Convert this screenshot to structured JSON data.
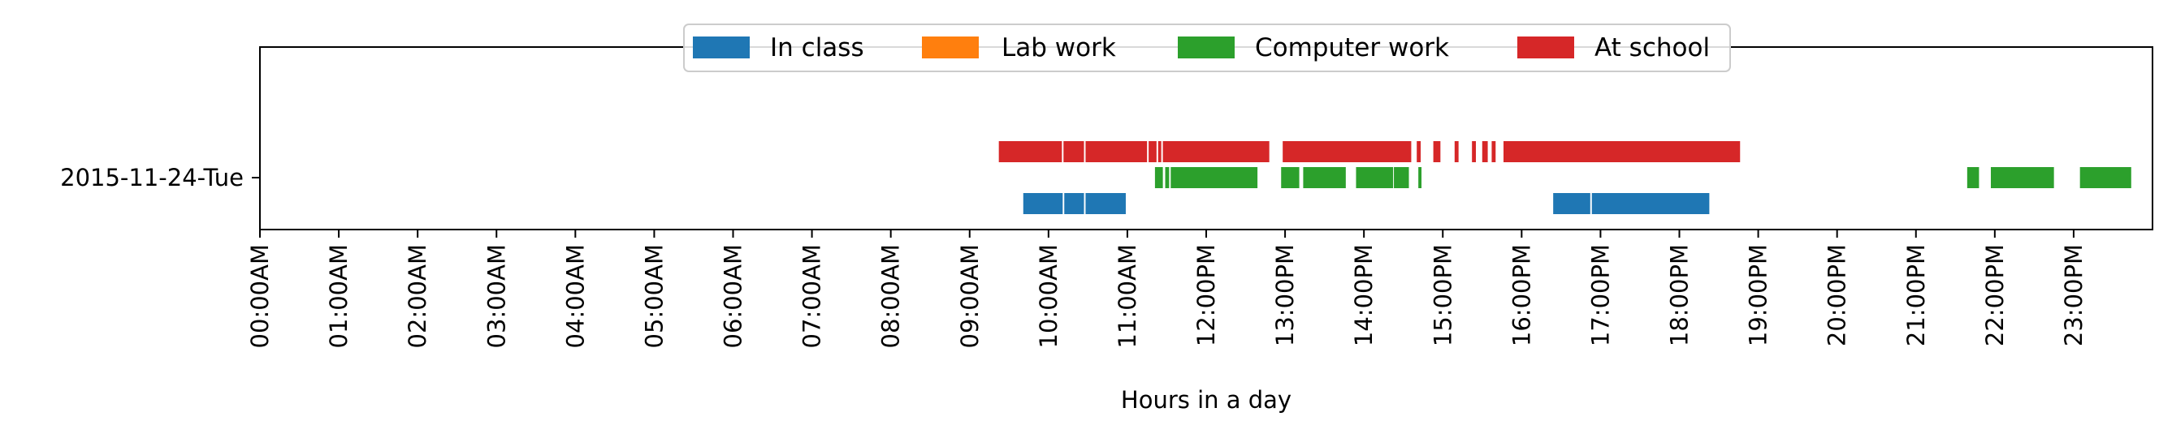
{
  "chart_data": {
    "type": "timeline",
    "xlabel": "Hours in a day",
    "ylabel": "",
    "xlim": [
      0,
      24
    ],
    "xticks": [
      "00:00AM",
      "01:00AM",
      "02:00AM",
      "03:00AM",
      "04:00AM",
      "05:00AM",
      "06:00AM",
      "07:00AM",
      "08:00AM",
      "09:00AM",
      "10:00AM",
      "11:00AM",
      "12:00PM",
      "13:00PM",
      "14:00PM",
      "15:00PM",
      "16:00PM",
      "17:00PM",
      "18:00PM",
      "19:00PM",
      "20:00PM",
      "21:00PM",
      "22:00PM",
      "23:00PM"
    ],
    "rows": [
      "2015-11-24-Tue"
    ],
    "legend_position": "top-center",
    "grid": false,
    "series": [
      {
        "name": "In class",
        "color": "#1f77b4",
        "lane": -1,
        "intervals": [
          [
            9.68,
            10.18
          ],
          [
            10.2,
            10.45
          ],
          [
            10.47,
            10.98
          ],
          [
            16.4,
            16.87
          ],
          [
            16.89,
            18.38
          ]
        ]
      },
      {
        "name": "Lab work",
        "color": "#ff7f0e",
        "lane": 0,
        "intervals": []
      },
      {
        "name": "Computer work",
        "color": "#2ca02c",
        "lane": 0,
        "intervals": [
          [
            11.35,
            11.45
          ],
          [
            11.48,
            11.53
          ],
          [
            11.55,
            12.65
          ],
          [
            12.95,
            13.18
          ],
          [
            13.23,
            13.77
          ],
          [
            13.9,
            14.37
          ],
          [
            14.38,
            14.57
          ],
          [
            14.69,
            14.73
          ],
          [
            21.65,
            21.8
          ],
          [
            21.95,
            22.75
          ],
          [
            23.08,
            23.73
          ]
        ]
      },
      {
        "name": "At school",
        "color": "#d62728",
        "lane": 1,
        "intervals": [
          [
            9.37,
            10.17
          ],
          [
            10.19,
            10.45
          ],
          [
            10.47,
            11.25
          ],
          [
            11.27,
            11.37
          ],
          [
            11.39,
            11.43
          ],
          [
            11.45,
            12.8
          ],
          [
            12.97,
            14.6
          ],
          [
            14.67,
            14.72
          ],
          [
            14.88,
            14.97
          ],
          [
            15.15,
            15.2
          ],
          [
            15.37,
            15.42
          ],
          [
            15.5,
            15.57
          ],
          [
            15.62,
            15.67
          ],
          [
            15.77,
            18.77
          ]
        ]
      }
    ]
  }
}
